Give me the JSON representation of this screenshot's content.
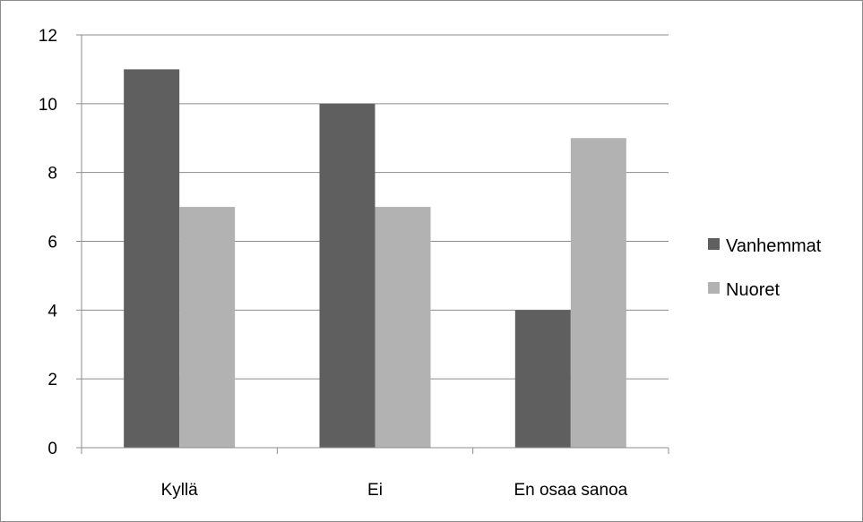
{
  "chart_data": {
    "type": "bar",
    "categories": [
      "Kyllä",
      "Ei",
      "En osaa sanoa"
    ],
    "series": [
      {
        "name": "Vanhemmat",
        "values": [
          11,
          10,
          4
        ],
        "color": "#5f5f5f"
      },
      {
        "name": "Nuoret",
        "values": [
          7,
          7,
          9
        ],
        "color": "#b2b2b2"
      }
    ],
    "y_ticks": [
      "0",
      "2",
      "4",
      "6",
      "8",
      "10",
      "12"
    ],
    "ylim": [
      0,
      12
    ],
    "grid": true,
    "legend_position": "right"
  }
}
